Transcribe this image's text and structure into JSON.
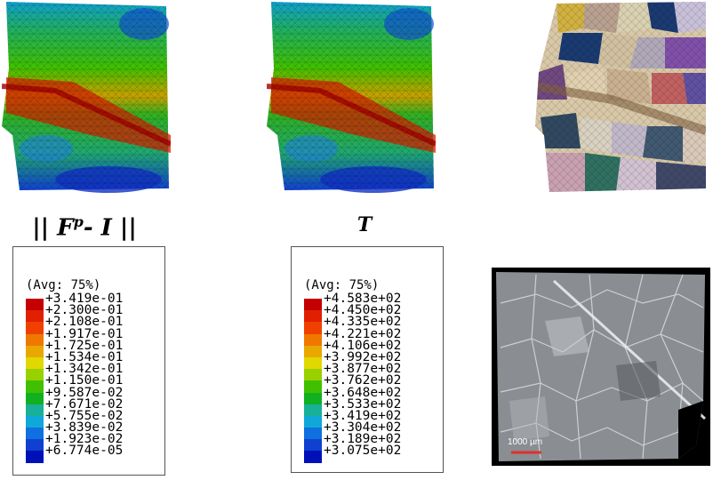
{
  "labels": {
    "fp": "|| F",
    "fp_sup": "p",
    "fp_tail": "- I ||",
    "t": "T"
  },
  "legend_fp": {
    "title": "(Avg: 75%)",
    "colors": [
      "#c40000",
      "#e02000",
      "#f04000",
      "#f07800",
      "#e8a800",
      "#e0d800",
      "#98d000",
      "#40c000",
      "#10b020",
      "#18b098",
      "#10a8d8",
      "#1070e0",
      "#1040d0",
      "#0010b8"
    ],
    "values": [
      "+3.419e-01",
      "+2.300e-01",
      "+2.108e-01",
      "+1.917e-01",
      "+1.725e-01",
      "+1.534e-01",
      "+1.342e-01",
      "+1.150e-01",
      "+9.587e-02",
      "+7.671e-02",
      "+5.755e-02",
      "+3.839e-02",
      "+1.923e-02",
      "+6.774e-05"
    ]
  },
  "legend_t": {
    "title": "(Avg: 75%)",
    "colors": [
      "#c40000",
      "#e02000",
      "#f04000",
      "#f07800",
      "#e8a800",
      "#e0d800",
      "#98d000",
      "#40c000",
      "#10b020",
      "#18b098",
      "#10a8d8",
      "#1070e0",
      "#1040d0",
      "#0010b8"
    ],
    "values": [
      "+4.583e+02",
      "+4.450e+02",
      "+4.335e+02",
      "+4.221e+02",
      "+4.106e+02",
      "+3.992e+02",
      "+3.877e+02",
      "+3.762e+02",
      "+3.648e+02",
      "+3.533e+02",
      "+3.419e+02",
      "+3.304e+02",
      "+3.189e+02",
      "+3.075e+02"
    ]
  },
  "photo": {
    "scale_bar_label": "1000 µm"
  }
}
